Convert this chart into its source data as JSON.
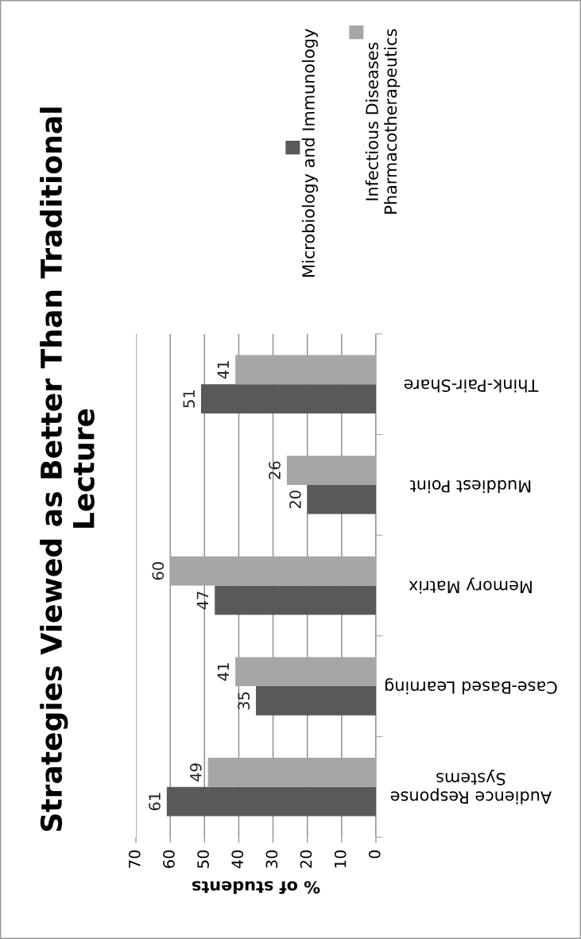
{
  "chart_data": {
    "type": "bar",
    "orientation": "horizontal",
    "title": "Strategies Viewed as Better Than Traditional Lecture",
    "xlabel": "% of students",
    "categories": [
      "Think-Pair-Share",
      "Muddiest Point",
      "Memory Matrix",
      "Case-Based Learning",
      "Audience Response Systems"
    ],
    "series": [
      {
        "name": "Microbiology and Immunology",
        "color": "#595959",
        "values": [
          51,
          20,
          47,
          35,
          61
        ]
      },
      {
        "name": "Infectious Diseases Pharmacotherapeutics",
        "color": "#a6a6a6",
        "values": [
          41,
          26,
          60,
          41,
          49
        ]
      }
    ],
    "xlim": [
      70,
      0
    ],
    "xticks": [
      0,
      10,
      20,
      30,
      40,
      50,
      60,
      70
    ],
    "grid": "x",
    "legend": "top",
    "data_labels": true
  }
}
